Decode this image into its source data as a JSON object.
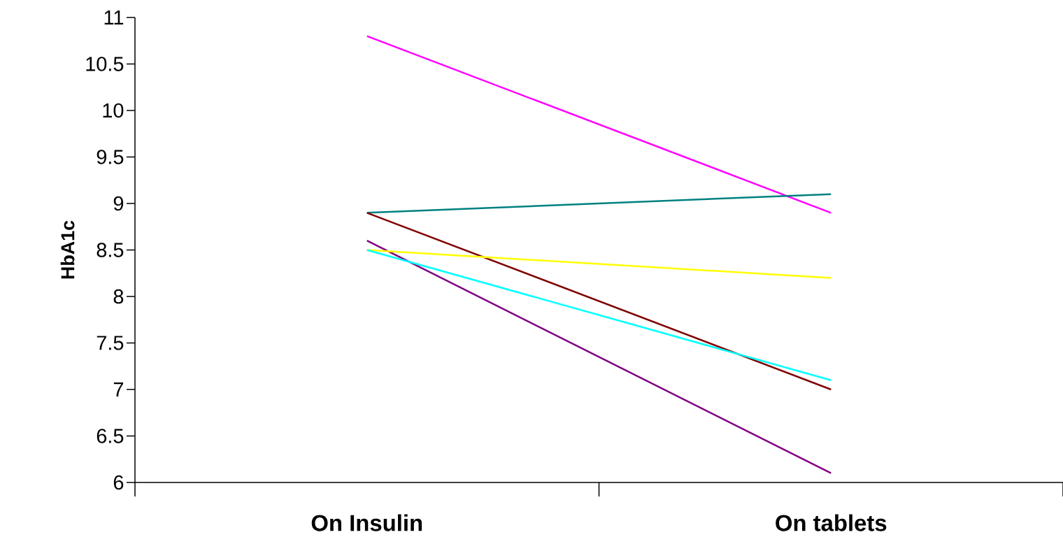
{
  "chart_data": {
    "type": "line",
    "ylabel": "HbA1c",
    "categories": [
      "On Insulin",
      "On tablets"
    ],
    "series": [
      {
        "color": "#ff00ff",
        "values": [
          10.8,
          8.9
        ]
      },
      {
        "color": "#008080",
        "values": [
          8.9,
          9.1
        ]
      },
      {
        "color": "#800000",
        "values": [
          8.9,
          7.0
        ]
      },
      {
        "color": "#800080",
        "values": [
          8.6,
          6.1
        ]
      },
      {
        "color": "#ffff00",
        "values": [
          8.5,
          8.2
        ]
      },
      {
        "color": "#00ffff",
        "values": [
          8.5,
          7.1
        ]
      }
    ],
    "ylim": [
      6,
      11
    ],
    "yticks": [
      6,
      6.5,
      7,
      7.5,
      8,
      8.5,
      9,
      9.5,
      10,
      10.5,
      11
    ],
    "grid": false
  }
}
